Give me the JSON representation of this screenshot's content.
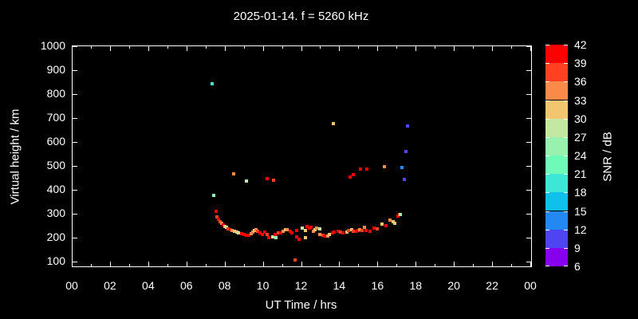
{
  "title": "2025-01-14. f = 5260 kHz",
  "chart_data": {
    "type": "scatter",
    "title": "2025-01-14. f = 5260 kHz",
    "xlabel": "UT Time / hrs",
    "ylabel": "Virtual height / km",
    "xlim": [
      0,
      24
    ],
    "ylim": [
      80,
      1000
    ],
    "x_tick_hours": [
      0,
      2,
      4,
      6,
      8,
      10,
      12,
      14,
      16,
      18,
      20,
      22,
      24
    ],
    "x_tick_labels": [
      "00",
      "02",
      "04",
      "06",
      "08",
      "10",
      "12",
      "14",
      "16",
      "18",
      "20",
      "22",
      "00"
    ],
    "x_minor_tick_hours": [
      1,
      3,
      5,
      7,
      9,
      11,
      13,
      15,
      17,
      19,
      21,
      23
    ],
    "y_tick_values": [
      100,
      200,
      300,
      400,
      500,
      600,
      700,
      800,
      900,
      1000
    ],
    "grid": false,
    "background": "#000000",
    "text_color": "#ffffff",
    "colorbar": {
      "label": "SNR / dB",
      "min": 6,
      "max": 42,
      "step": 3,
      "tick_labels": [
        42,
        39,
        36,
        33,
        30,
        27,
        24,
        21,
        18,
        15,
        12,
        9,
        6
      ],
      "colors_top_to_bottom": [
        "#ff0000",
        "#ff4122",
        "#fa8a4a",
        "#f2c66e",
        "#c2e8a2",
        "#98f2ae",
        "#6ffab8",
        "#3ee6d8",
        "#0fc0ea",
        "#2388f2",
        "#4f44f2",
        "#8700ee"
      ]
    },
    "points_format": [
      "ut_hours",
      "virtual_height_km",
      "snr_db"
    ],
    "points": [
      [
        7.33,
        840,
        19
      ],
      [
        7.42,
        373,
        25
      ],
      [
        8.46,
        463,
        34
      ],
      [
        9.13,
        433,
        28
      ],
      [
        10.21,
        443,
        40
      ],
      [
        10.54,
        437,
        37
      ],
      [
        11.69,
        103,
        37
      ],
      [
        13.71,
        673,
        31
      ],
      [
        14.58,
        450,
        40
      ],
      [
        14.75,
        460,
        40
      ],
      [
        15.13,
        483,
        40
      ],
      [
        15.46,
        483,
        40
      ],
      [
        16.38,
        493,
        34
      ],
      [
        17.29,
        490,
        13
      ],
      [
        17.42,
        440,
        10
      ],
      [
        17.5,
        557,
        10
      ],
      [
        17.58,
        663,
        10
      ],
      [
        7.54,
        307,
        40
      ],
      [
        7.58,
        283,
        37
      ],
      [
        7.67,
        273,
        40
      ],
      [
        7.75,
        263,
        37
      ],
      [
        7.83,
        257,
        34
      ],
      [
        7.92,
        250,
        40
      ],
      [
        8.0,
        243,
        31
      ],
      [
        8.08,
        240,
        28
      ],
      [
        8.17,
        233,
        37
      ],
      [
        8.29,
        230,
        40
      ],
      [
        8.38,
        227,
        34
      ],
      [
        8.5,
        223,
        31
      ],
      [
        8.63,
        220,
        31
      ],
      [
        8.71,
        217,
        28
      ],
      [
        8.88,
        213,
        40
      ],
      [
        9.0,
        210,
        40
      ],
      [
        9.13,
        207,
        40
      ],
      [
        9.25,
        207,
        40
      ],
      [
        9.38,
        213,
        34
      ],
      [
        9.46,
        220,
        34
      ],
      [
        9.54,
        227,
        31
      ],
      [
        9.63,
        230,
        34
      ],
      [
        9.71,
        223,
        37
      ],
      [
        9.83,
        217,
        40
      ],
      [
        9.96,
        210,
        40
      ],
      [
        10.08,
        220,
        40
      ],
      [
        10.21,
        210,
        37
      ],
      [
        10.33,
        197,
        40
      ],
      [
        10.5,
        200,
        28
      ],
      [
        10.63,
        210,
        40
      ],
      [
        10.67,
        197,
        25
      ],
      [
        10.79,
        217,
        37
      ],
      [
        10.92,
        217,
        40
      ],
      [
        11.04,
        223,
        34
      ],
      [
        11.17,
        230,
        31
      ],
      [
        11.29,
        230,
        34
      ],
      [
        11.42,
        223,
        40
      ],
      [
        11.54,
        217,
        40
      ],
      [
        11.75,
        227,
        40
      ],
      [
        11.79,
        200,
        40
      ],
      [
        11.88,
        190,
        40
      ],
      [
        12.08,
        237,
        28
      ],
      [
        12.21,
        197,
        31
      ],
      [
        12.25,
        227,
        31
      ],
      [
        12.33,
        243,
        40
      ],
      [
        12.42,
        237,
        40
      ],
      [
        12.54,
        240,
        40
      ],
      [
        12.63,
        223,
        34
      ],
      [
        12.71,
        230,
        31
      ],
      [
        12.83,
        237,
        34
      ],
      [
        12.96,
        233,
        28
      ],
      [
        13.0,
        210,
        34
      ],
      [
        13.13,
        207,
        37
      ],
      [
        13.25,
        203,
        40
      ],
      [
        13.38,
        203,
        34
      ],
      [
        13.5,
        210,
        31
      ],
      [
        13.63,
        217,
        40
      ],
      [
        13.75,
        220,
        40
      ],
      [
        13.96,
        223,
        40
      ],
      [
        14.08,
        220,
        37
      ],
      [
        14.21,
        217,
        40
      ],
      [
        14.38,
        220,
        31
      ],
      [
        14.5,
        227,
        37
      ],
      [
        14.63,
        230,
        31
      ],
      [
        14.75,
        223,
        37
      ],
      [
        14.88,
        223,
        40
      ],
      [
        15.0,
        227,
        40
      ],
      [
        15.08,
        230,
        34
      ],
      [
        15.21,
        227,
        37
      ],
      [
        15.33,
        240,
        34
      ],
      [
        15.42,
        227,
        40
      ],
      [
        15.63,
        223,
        40
      ],
      [
        15.83,
        237,
        40
      ],
      [
        16.0,
        233,
        37
      ],
      [
        16.25,
        253,
        31
      ],
      [
        16.46,
        247,
        40
      ],
      [
        16.67,
        270,
        34
      ],
      [
        16.83,
        263,
        31
      ],
      [
        16.92,
        257,
        31
      ],
      [
        17.08,
        287,
        40
      ],
      [
        17.17,
        293,
        37
      ],
      [
        17.21,
        293,
        25
      ]
    ]
  }
}
